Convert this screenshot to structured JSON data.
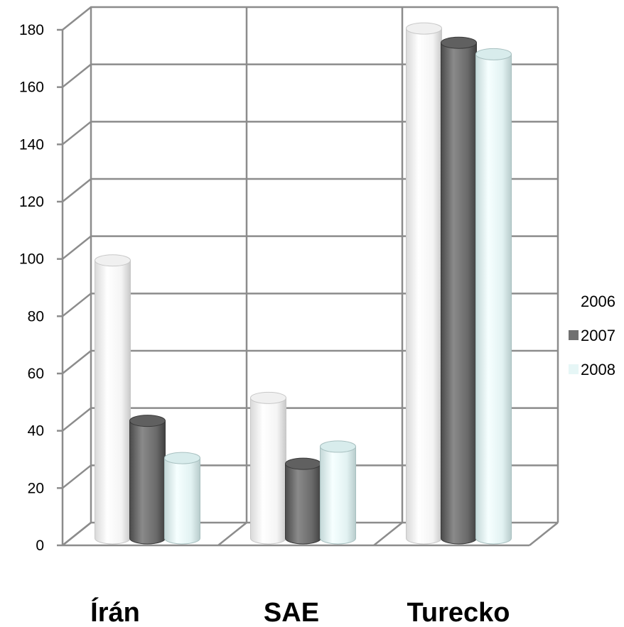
{
  "chart_data": {
    "type": "bar",
    "style": "3d-cylinder",
    "categories": [
      "Írán",
      "SAE",
      "Turecko"
    ],
    "series": [
      {
        "name": "2006",
        "values": [
          97,
          49,
          178
        ],
        "color": "#ffffff"
      },
      {
        "name": "2007",
        "values": [
          41,
          26,
          173
        ],
        "color": "#707070"
      },
      {
        "name": "2008",
        "values": [
          28,
          32,
          169
        ],
        "color": "#e8f8f8"
      }
    ],
    "ylim": [
      0,
      180
    ],
    "yticks": [
      0,
      20,
      40,
      60,
      80,
      100,
      120,
      140,
      160,
      180
    ],
    "grid": true,
    "legend_position": "right"
  }
}
